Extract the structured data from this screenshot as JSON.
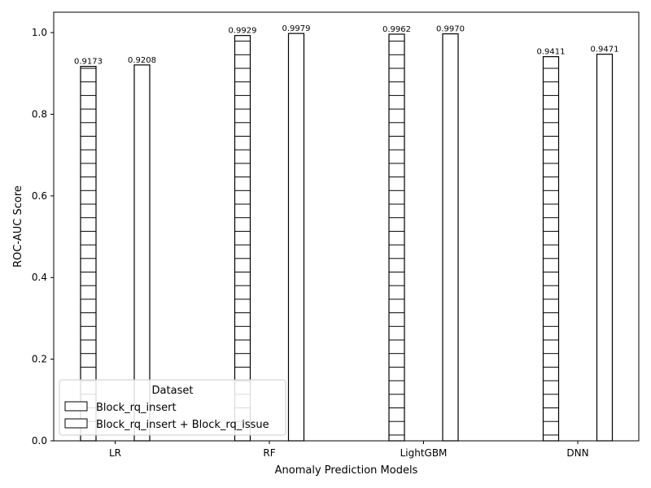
{
  "chart_data": {
    "type": "bar",
    "categories": [
      "LR",
      "RF",
      "LightGBM",
      "DNN"
    ],
    "series": [
      {
        "name": "Block_rq_insert",
        "values": [
          0.9173,
          0.9929,
          0.9962,
          0.9411
        ],
        "data_labels": [
          "0.9173",
          "0.9929",
          "0.9962",
          "0.9411"
        ],
        "hatch": "horizontal-lines"
      },
      {
        "name": "Block_rq_insert + Block_rq_issue",
        "values": [
          0.9208,
          0.9979,
          0.997,
          0.9471
        ],
        "data_labels": [
          "0.9208",
          "0.9979",
          "0.9970",
          "0.9471"
        ],
        "hatch": "none"
      }
    ],
    "title": "",
    "xlabel": "Anomaly Prediction Models",
    "ylabel": "ROC-AUC Score",
    "ylim": [
      0,
      1.05
    ],
    "yticks": [
      0.0,
      0.2,
      0.4,
      0.6,
      0.8,
      1.0
    ],
    "ytick_labels": [
      "0.0",
      "0.2",
      "0.4",
      "0.6",
      "0.8",
      "1.0"
    ],
    "grid": false,
    "legend": {
      "title": "Dataset",
      "placement": "lower-left"
    },
    "colors": {
      "bar_fill": "#ffffff",
      "bar_edge": "#000000"
    }
  }
}
